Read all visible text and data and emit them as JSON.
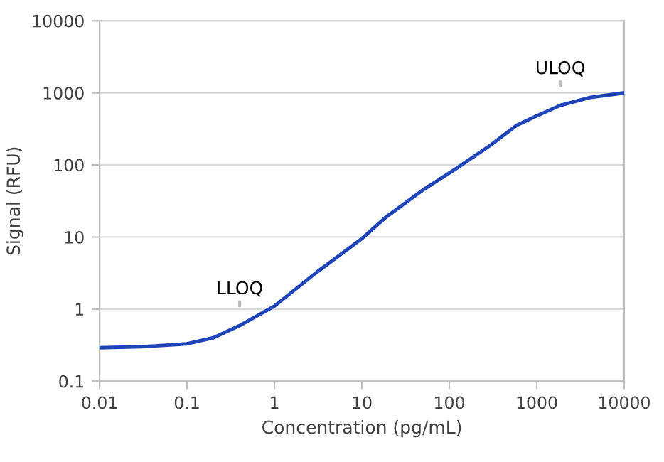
{
  "chart_data": {
    "type": "line",
    "xlabel": "Concentration (pg/mL)",
    "ylabel": "Signal (RFU)",
    "log": "xy",
    "x": [
      0.01,
      0.03,
      0.1,
      0.2,
      0.4,
      1,
      3,
      10,
      19,
      50,
      120,
      300,
      590,
      1000,
      1860,
      4000,
      10000
    ],
    "series": [
      {
        "color": "#1f45b8",
        "values": [
          0.29,
          0.3,
          0.33,
          0.4,
          0.59,
          1.1,
          3.2,
          9.5,
          19,
          45,
          89,
          190,
          355,
          480,
          670,
          860,
          1000
        ]
      }
    ],
    "xlim": [
      0.01,
      10000
    ],
    "ylim": [
      0.1,
      10000
    ],
    "xticks": [
      0.01,
      0.1,
      1,
      10,
      100,
      1000,
      10000
    ],
    "yticks": [
      0.1,
      1,
      10,
      100,
      1000,
      10000
    ],
    "grid": "y",
    "marker": "none",
    "line_style": "solid",
    "annotations": [
      {
        "text": "LLOQ",
        "x": 0.4,
        "y": 0.59
      },
      {
        "text": "ULOQ",
        "x": 1860,
        "y": 670
      }
    ]
  }
}
